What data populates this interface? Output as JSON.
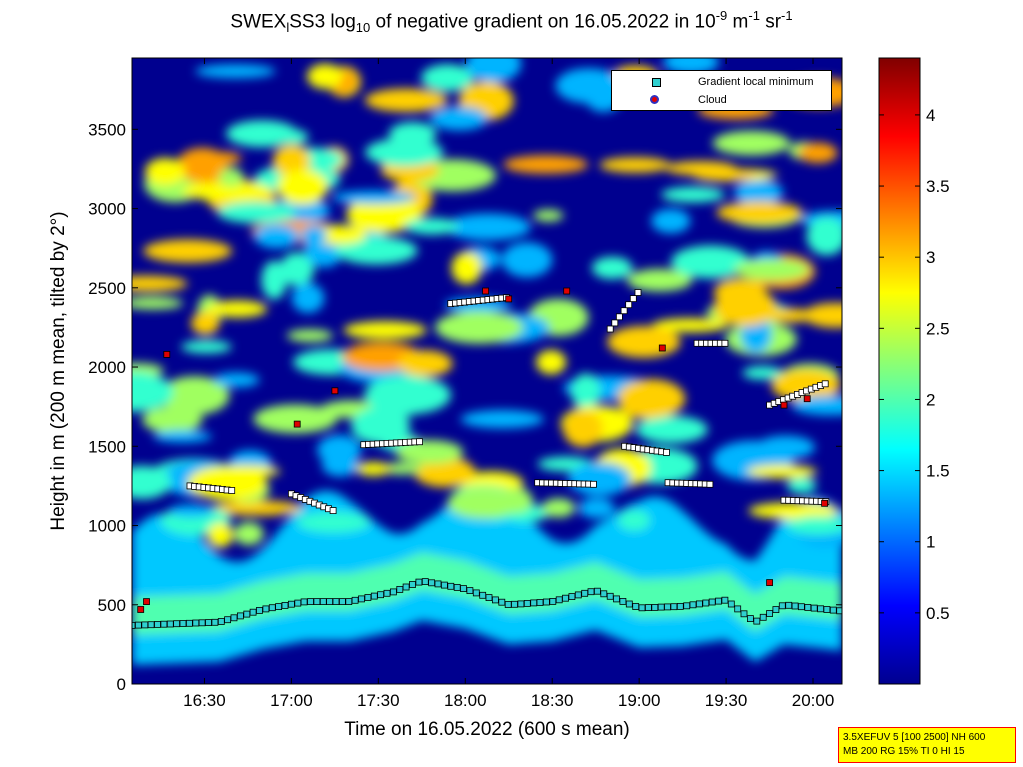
{
  "title": {
    "prefix": "SWEX",
    "sub1": "l",
    "mid": "SS3 log",
    "sub2": "10",
    "rest": " of negative gradient on 16.05.2022 in 10",
    "sup1": "-9",
    "unit1": " m",
    "sup2": "-1",
    "unit2": " sr",
    "sup3": "-1"
  },
  "info_box": {
    "line1": "3.5XEFUV 5 [100 2500] NH 600",
    "line2": "MB 200 RG 15% TI 0 HI 15"
  },
  "colors": {
    "cmap_low": "#00008f",
    "cmap_mid": "#40ffbf",
    "cmap_high": "#800000",
    "marker_min": "#2fd0d0",
    "marker_cloud": "#e00000"
  },
  "chart_data": {
    "type": "heatmap",
    "title": "SWEX_l SS3 log10 of negative gradient on 16.05.2022 in 10^-9 m^-1 sr^-1",
    "xlabel": "Time on 16.05.2022 (600 s mean)",
    "ylabel": "Height in m (200 m mean, tilted by 2°)",
    "xlim": [
      "16:05",
      "20:10"
    ],
    "ylim": [
      0,
      3950
    ],
    "xticks": [
      "16:30",
      "17:00",
      "17:30",
      "18:00",
      "18:30",
      "19:00",
      "19:30",
      "20:00"
    ],
    "yticks": [
      0,
      500,
      1000,
      1500,
      2000,
      2500,
      3000,
      3500
    ],
    "colorbar": {
      "ticks": [
        0.5,
        1,
        1.5,
        2,
        2.5,
        3,
        3.5,
        4
      ],
      "range": [
        0,
        4.4
      ],
      "colormap": "jet"
    },
    "legend": {
      "position": "top-right",
      "entries": [
        "Gradient local minimum",
        "Cloud"
      ]
    },
    "boundary_layer": {
      "times": [
        "16:05",
        "16:20",
        "16:35",
        "16:50",
        "17:05",
        "17:20",
        "17:35",
        "17:45",
        "18:00",
        "18:15",
        "18:30",
        "18:45",
        "19:00",
        "19:15",
        "19:30",
        "19:40",
        "19:50",
        "20:00",
        "20:10"
      ],
      "heights": [
        370,
        380,
        390,
        470,
        520,
        520,
        580,
        650,
        600,
        500,
        520,
        590,
        480,
        490,
        530,
        390,
        500,
        480,
        460
      ]
    },
    "gradient_minimum_layers": [
      {
        "times": [
          "16:25",
          "16:40"
        ],
        "heights": [
          1250,
          1220
        ]
      },
      {
        "times": [
          "17:00",
          "17:15"
        ],
        "heights": [
          1200,
          1090
        ]
      },
      {
        "times": [
          "17:25",
          "17:45"
        ],
        "heights": [
          1510,
          1530
        ]
      },
      {
        "times": [
          "18:25",
          "18:45"
        ],
        "heights": [
          1270,
          1260
        ]
      },
      {
        "times": [
          "18:55",
          "19:10"
        ],
        "heights": [
          1500,
          1460
        ]
      },
      {
        "times": [
          "19:10",
          "19:25"
        ],
        "heights": [
          1270,
          1260
        ]
      },
      {
        "times": [
          "19:50",
          "20:05"
        ],
        "heights": [
          1160,
          1150
        ]
      },
      {
        "times": [
          "17:55",
          "18:15"
        ],
        "heights": [
          2400,
          2440
        ]
      },
      {
        "times": [
          "18:50",
          "19:00"
        ],
        "heights": [
          2240,
          2480
        ]
      },
      {
        "times": [
          "19:20",
          "19:30"
        ],
        "heights": [
          2150,
          2150
        ]
      },
      {
        "times": [
          "19:45",
          "20:05"
        ],
        "heights": [
          1760,
          1900
        ]
      }
    ],
    "cloud_points": {
      "times": [
        "16:10",
        "16:08",
        "16:17",
        "17:02",
        "17:15",
        "18:07",
        "18:15",
        "18:35",
        "19:08",
        "19:50",
        "19:58",
        "20:04",
        "19:45"
      ],
      "heights": [
        520,
        470,
        2080,
        1640,
        1850,
        2480,
        2430,
        2480,
        2120,
        1760,
        1800,
        1140,
        640
      ]
    }
  }
}
